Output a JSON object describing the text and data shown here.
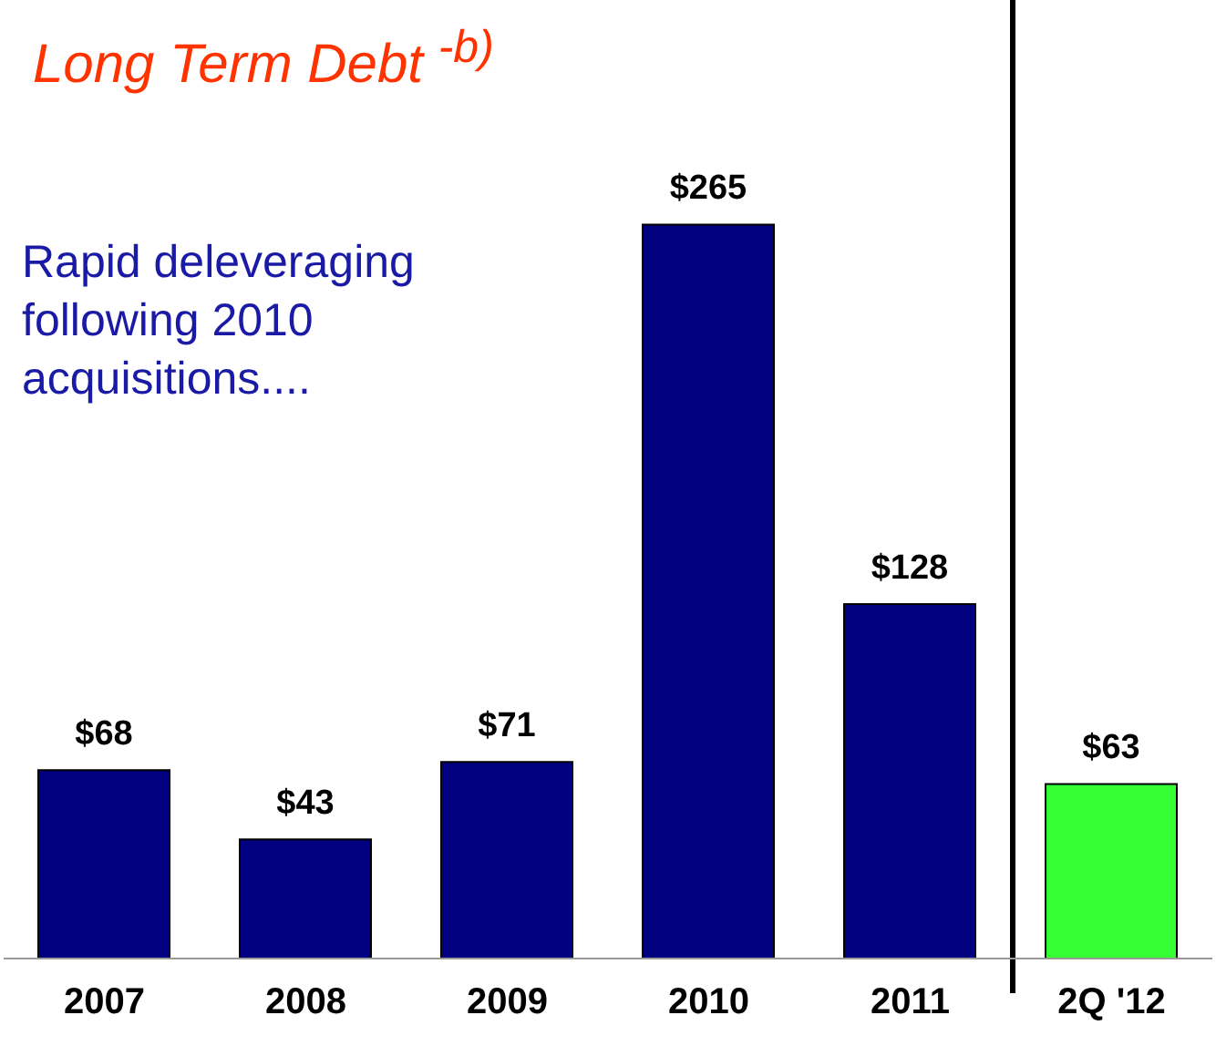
{
  "chart_data": {
    "type": "bar",
    "title": "Long Term Debt $^{-b)}$",
    "categories": [
      "2007",
      "2008",
      "2009",
      "2010",
      "2011",
      "2Q '12"
    ],
    "values": [
      68,
      43,
      71,
      265,
      128,
      63
    ],
    "colors": [
      "#000080",
      "#000080",
      "#000080",
      "#000080",
      "#000080",
      "#33ff33"
    ],
    "value_labels": [
      "$68",
      "$43",
      "$71",
      "$265",
      "$128",
      "$63"
    ],
    "annotations": [
      "Rapid deleveraging following 2010 acquisitions...."
    ],
    "grid": false,
    "legend": false
  }
}
